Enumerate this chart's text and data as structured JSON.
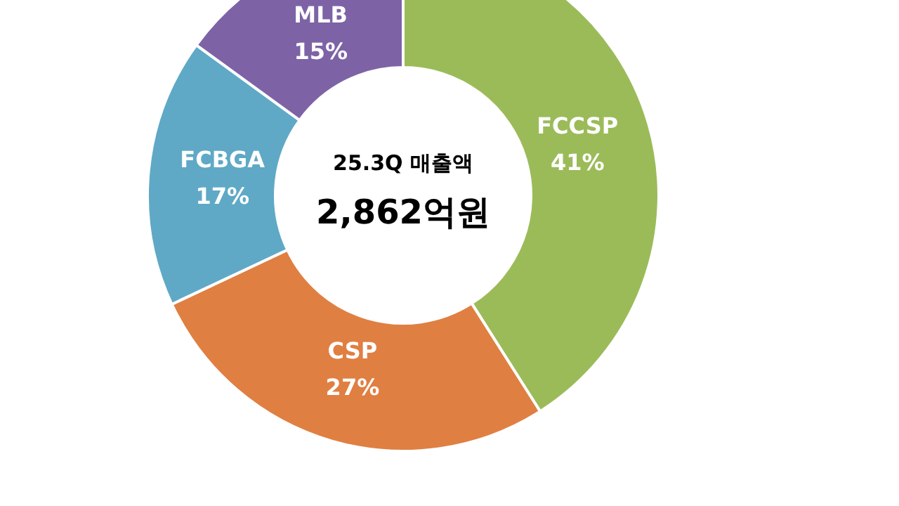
{
  "chart_data": {
    "type": "donut",
    "title": "25.3Q 매출액",
    "subtitle": "2,862억원",
    "categories": [
      "FCCSP",
      "CSP",
      "FCBGA",
      "MLB"
    ],
    "values": [
      41,
      27,
      17,
      15
    ],
    "value_labels": [
      "41%",
      "27%",
      "17%",
      "15%"
    ],
    "colors": [
      "#9bbb59",
      "#e07f42",
      "#5fa9c6",
      "#7d63a6"
    ],
    "legend": false
  }
}
